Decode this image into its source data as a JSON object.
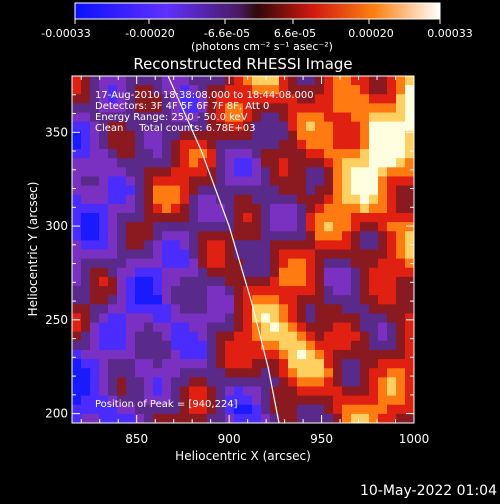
{
  "colorbar": {
    "ticks": [
      "-0.00033",
      "-0.00020",
      "-6.6e-05",
      "6.6e-05",
      "0.00020",
      "0.00033"
    ],
    "unit_label": "(photons cm⁻² s⁻¹ asec⁻²)",
    "range": [
      -0.00033,
      0.00033
    ]
  },
  "chart_data": {
    "type": "heatmap",
    "title": "Reconstructed RHESSI Image",
    "xlabel": "Heliocentric X (arcsec)",
    "ylabel": "Heliocentric Y (arcsec)",
    "xlim": [
      815,
      1000
    ],
    "ylim": [
      195,
      380
    ],
    "x_ticks": [
      "850",
      "900",
      "950",
      "1000"
    ],
    "y_ticks": [
      "200",
      "250",
      "300",
      "350"
    ],
    "x_tick_values": [
      850,
      900,
      950,
      1000
    ],
    "y_tick_values": [
      200,
      250,
      300,
      350
    ],
    "annotations": [
      "17-Aug-2010 18:38:08.000 to 18:44:08.000",
      "Detectors: 3F 4F 5F 6F 7F 8F, Att 0",
      "Energy Range: 25.0 - 50.0 keV",
      "Clean     Total counts: 6.78E+03"
    ],
    "peak_label": "Position of Peak = [940,224]",
    "peak": [
      940,
      224
    ],
    "limb_curve": [
      [
        867,
        380
      ],
      [
        885,
        340
      ],
      [
        900,
        300
      ],
      [
        912,
        260
      ],
      [
        921,
        225
      ],
      [
        927,
        195
      ]
    ],
    "colormap": [
      "#1a1aff",
      "#4a2cff",
      "#7a30c0",
      "#5a2a8a",
      "#8a1a20",
      "#e02010",
      "#ff7a10",
      "#ffd060",
      "#ffffe0"
    ]
  },
  "footer": {
    "date": "10-May-2022 01:04"
  }
}
